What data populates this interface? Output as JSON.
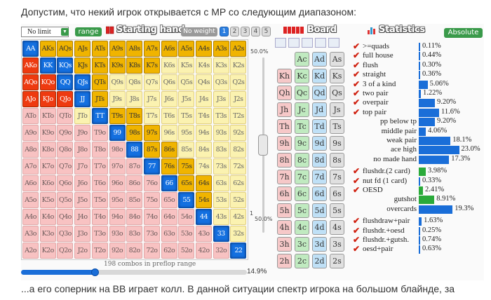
{
  "intro_text": "Допустим, что некий игрок открывается с MP со следующим диапазоном:",
  "outro_text": "...а его соперник на BB играет колл. В данной ситуации спектр игрока на большом блайнде, за",
  "toolbar": {
    "limit_select": "No limit",
    "range_label": "range",
    "starting_hand_title": "Starting hand",
    "no_weight_label": "No weight",
    "weight_buttons": [
      "1",
      "2",
      "3",
      "4",
      "5"
    ],
    "board_title": "Board",
    "statistics_title": "Statistics",
    "absolute_label": "Absolute"
  },
  "grid": {
    "rows": [
      [
        "AA",
        "AKs",
        "AQs",
        "AJs",
        "ATs",
        "A9s",
        "A8s",
        "A7s",
        "A6s",
        "A5s",
        "A4s",
        "A3s",
        "A2s"
      ],
      [
        "AKo",
        "KK",
        "KQs",
        "KJs",
        "KTs",
        "K9s",
        "K8s",
        "K7s",
        "K6s",
        "K5s",
        "K4s",
        "K3s",
        "K2s"
      ],
      [
        "AQo",
        "KQo",
        "QQ",
        "QJs",
        "QTs",
        "Q9s",
        "Q8s",
        "Q7s",
        "Q6s",
        "Q5s",
        "Q4s",
        "Q3s",
        "Q2s"
      ],
      [
        "AJo",
        "KJo",
        "QJo",
        "JJ",
        "JTs",
        "J9s",
        "J8s",
        "J7s",
        "J6s",
        "J5s",
        "J4s",
        "J3s",
        "J2s"
      ],
      [
        "ATo",
        "KTo",
        "QTo",
        "JTo",
        "TT",
        "T9s",
        "T8s",
        "T7s",
        "T6s",
        "T5s",
        "T4s",
        "T3s",
        "T2s"
      ],
      [
        "A9o",
        "K9o",
        "Q9o",
        "J9o",
        "T9o",
        "99",
        "98s",
        "97s",
        "96s",
        "95s",
        "94s",
        "93s",
        "92s"
      ],
      [
        "A8o",
        "K8o",
        "Q8o",
        "J8o",
        "T8o",
        "98o",
        "88",
        "87s",
        "86s",
        "85s",
        "84s",
        "83s",
        "82s"
      ],
      [
        "A7o",
        "K7o",
        "Q7o",
        "J7o",
        "T7o",
        "97o",
        "87o",
        "77",
        "76s",
        "75s",
        "74s",
        "73s",
        "72s"
      ],
      [
        "A6o",
        "K6o",
        "Q6o",
        "J6o",
        "T6o",
        "96o",
        "86o",
        "76o",
        "66",
        "65s",
        "64s",
        "63s",
        "62s"
      ],
      [
        "A5o",
        "K5o",
        "Q5o",
        "J5o",
        "T5o",
        "95o",
        "85o",
        "75o",
        "65o",
        "55",
        "54s",
        "53s",
        "52s"
      ],
      [
        "A4o",
        "K4o",
        "Q4o",
        "J4o",
        "T4o",
        "94o",
        "84o",
        "74o",
        "64o",
        "54o",
        "44",
        "43s",
        "42s"
      ],
      [
        "A3o",
        "K3o",
        "Q3o",
        "J3o",
        "T3o",
        "93o",
        "83o",
        "73o",
        "63o",
        "53o",
        "43o",
        "33",
        "32s"
      ],
      [
        "A2o",
        "K2o",
        "Q2o",
        "J2o",
        "T2o",
        "92o",
        "82o",
        "72o",
        "62o",
        "52o",
        "42o",
        "32o",
        "22"
      ]
    ],
    "states": [
      "bgggggggggggg",
      "obbgggggyyyyy",
      "oobbgyyyyyyyy",
      "ooobgyyyyyyyy",
      "pppybggyyyyyy",
      "pppppbggyyyyy",
      "ppppppbggyyyy",
      "pppppppbggyyy",
      "ppppppppbggyy",
      "pppppppppbgyy",
      "ppppppppppbyy",
      "pppppppppppby",
      "ppppppppppppb"
    ],
    "bars": [
      "0111111111111",
      "0000000000000",
      "0000000000000",
      "0000000000000",
      "0000001000000",
      "0000001100000",
      "0000000010000",
      "0000000001000",
      "0000000001100",
      "0000000000100",
      "0000000000000",
      "0000000000000",
      "0000000000000"
    ]
  },
  "vslider": {
    "top": "50.0%",
    "bottom_a": "1",
    "bottom_b": "50.0%"
  },
  "combos_label": "198 combos in preflop range",
  "range_percent": "14.9%",
  "range_fraction": 0.149,
  "board_cards": [
    [
      "Ac",
      "Ad",
      "As"
    ],
    [
      "Kh",
      "Kc",
      "Kd",
      "Ks"
    ],
    [
      "Qh",
      "Qc",
      "Qd",
      "Qs"
    ],
    [
      "Jh",
      "Jc",
      "Jd",
      "Js"
    ],
    [
      "Th",
      "Tc",
      "Td",
      "Ts"
    ],
    [
      "9h",
      "9c",
      "9d",
      "9s"
    ],
    [
      "8h",
      "8c",
      "8d",
      "8s"
    ],
    [
      "7h",
      "7c",
      "7d",
      "7s"
    ],
    [
      "6h",
      "6c",
      "6d",
      "6s"
    ],
    [
      "5h",
      "5c",
      "5d",
      "5s"
    ],
    [
      "4h",
      "4c",
      "4d",
      "4s"
    ],
    [
      "3h",
      "3c",
      "3d",
      "3s"
    ],
    [
      "2h",
      "2c",
      "2d",
      "2s"
    ]
  ],
  "stats": [
    {
      "label": ">=quads",
      "value": "0.11%",
      "pct": 0.11,
      "check": true,
      "indent": false
    },
    {
      "label": "full house",
      "value": "0.44%",
      "pct": 0.44,
      "check": true,
      "indent": false
    },
    {
      "label": "flush",
      "value": "0.30%",
      "pct": 0.3,
      "check": true,
      "indent": false
    },
    {
      "label": "straight",
      "value": "0.36%",
      "pct": 0.36,
      "check": true,
      "indent": false
    },
    {
      "label": "3 of a kind",
      "value": "5.06%",
      "pct": 5.06,
      "check": true,
      "indent": false
    },
    {
      "label": "two pair",
      "value": "1.22%",
      "pct": 1.22,
      "check": true,
      "indent": false
    },
    {
      "label": "overpair",
      "value": "9.20%",
      "pct": 9.2,
      "check": true,
      "indent": false
    },
    {
      "label": "top pair",
      "value": "11.6%",
      "pct": 11.6,
      "check": true,
      "indent": false
    },
    {
      "label": "pp below tp",
      "value": "9.20%",
      "pct": 9.2,
      "check": false,
      "indent": true
    },
    {
      "label": "middle pair",
      "value": "4.06%",
      "pct": 4.06,
      "check": false,
      "indent": true
    },
    {
      "label": "weak pair",
      "value": "18.1%",
      "pct": 18.1,
      "check": false,
      "indent": true
    },
    {
      "label": "ace high",
      "value": "23.0%",
      "pct": 23.0,
      "check": false,
      "indent": true
    },
    {
      "label": "no made hand",
      "value": "17.3%",
      "pct": 17.3,
      "check": false,
      "indent": true
    },
    {
      "label": "flushdr.(2 card)",
      "value": "3.98%",
      "pct": 3.98,
      "check": true,
      "indent": false,
      "green": true
    },
    {
      "label": "nut fd (1 card)",
      "value": "0.33%",
      "pct": 0.33,
      "check": true,
      "indent": false
    },
    {
      "label": "OESD",
      "value": "2.41%",
      "pct": 2.41,
      "check": true,
      "indent": false,
      "green": true
    },
    {
      "label": "gutshot",
      "value": "8.91%",
      "pct": 8.91,
      "check": false,
      "indent": true,
      "green": true
    },
    {
      "label": "overcards",
      "value": "19.3%",
      "pct": 19.3,
      "check": false,
      "indent": true
    },
    {
      "label": "flushdraw+pair",
      "value": "1.63%",
      "pct": 1.63,
      "check": true,
      "indent": false
    },
    {
      "label": "flushdr.+oesd",
      "value": "0.25%",
      "pct": 0.25,
      "check": true,
      "indent": false
    },
    {
      "label": "flushdr.+gutsh.",
      "value": "0.74%",
      "pct": 0.74,
      "check": true,
      "indent": false
    },
    {
      "label": "oesd+pair",
      "value": "0.63%",
      "pct": 0.63,
      "check": true,
      "indent": false
    }
  ],
  "colors": {
    "selected": "#1470e0",
    "weighted": "#f0b400",
    "suited_pair": "#ee3a10",
    "offsuit": "#f8c2c2",
    "suited": "#fbf2b0",
    "bar_blue": "#1a6ed8",
    "bar_green": "#2aaa3a"
  }
}
